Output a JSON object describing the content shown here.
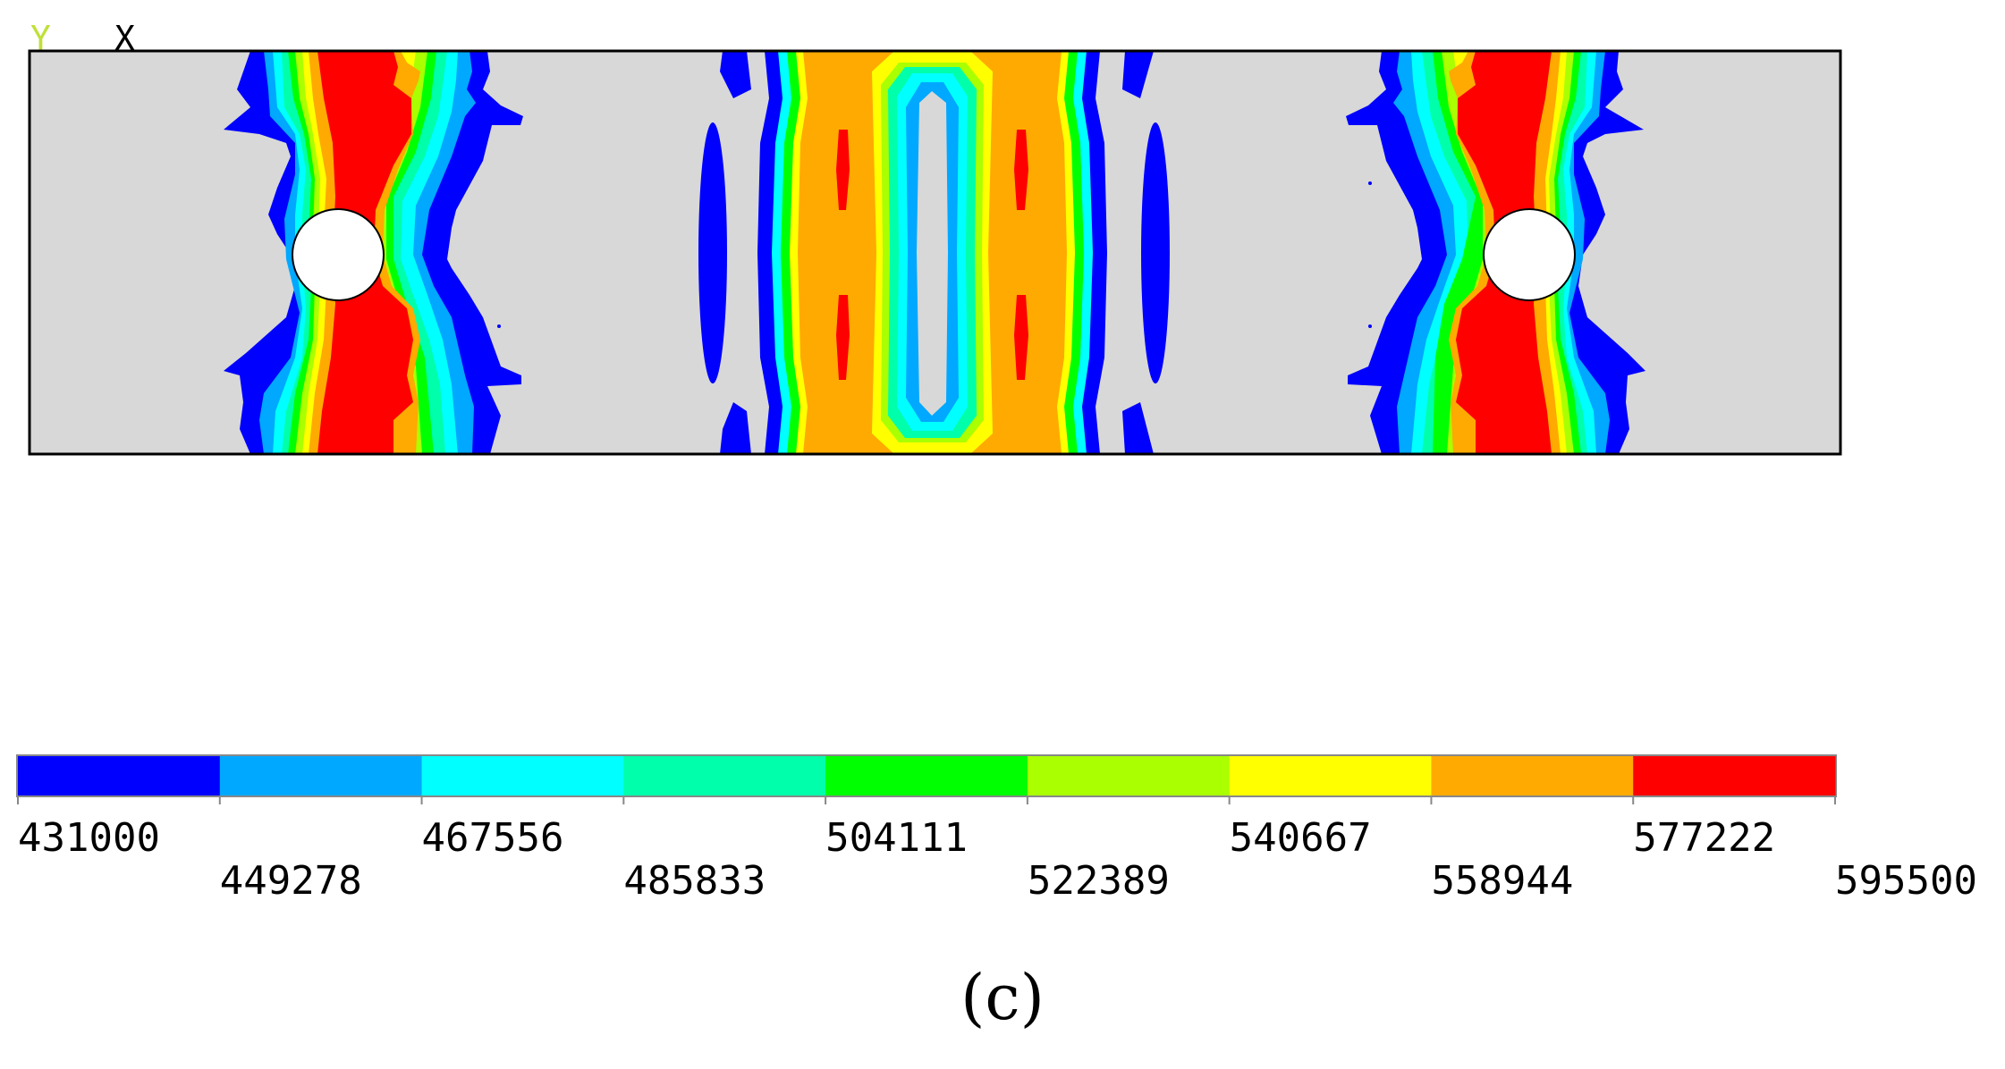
{
  "axes": {
    "y_label": "Y",
    "x_label": "X",
    "y_color": "#bfe03a",
    "x_color": "#000000"
  },
  "palette": {
    "background_region": "#d8d8d8",
    "hole": "#ffffff",
    "band_colors": [
      "#0000ff",
      "#00a8ff",
      "#00ffff",
      "#00ffaa",
      "#00ff00",
      "#aaff00",
      "#ffff00",
      "#ffaa00",
      "#ff0000"
    ]
  },
  "legend": {
    "values": [
      "431000",
      "449278",
      "467556",
      "485833",
      "504111",
      "522389",
      "540667",
      "558944",
      "577222",
      "595500"
    ]
  },
  "caption": "(c)"
}
